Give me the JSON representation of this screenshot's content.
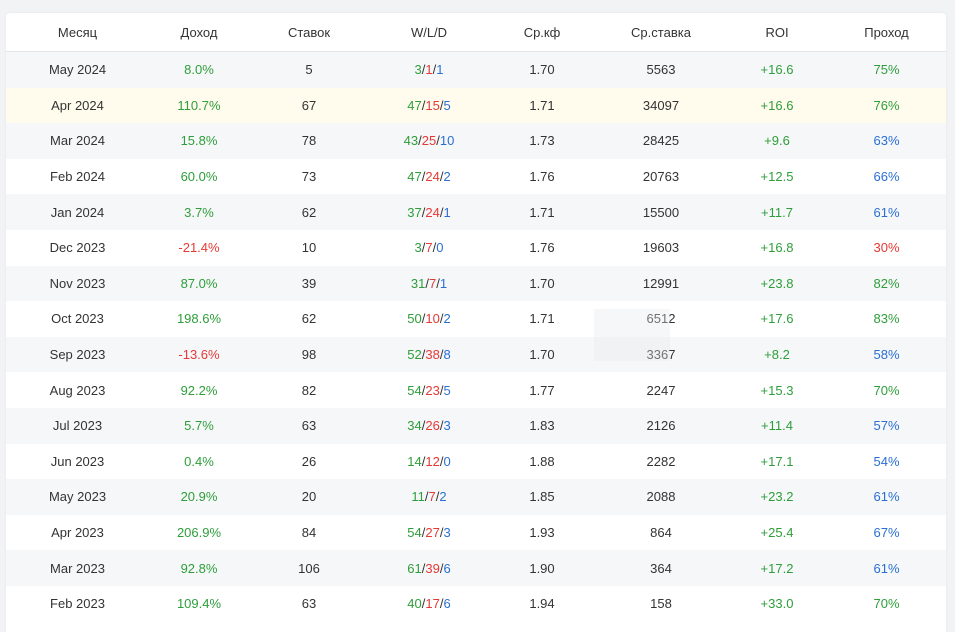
{
  "colors": {
    "positive": "#2e9e3a",
    "negative": "#e53935",
    "draw": "#2a6fd4",
    "highlight_row": "#fffbed",
    "alt_row": "#f6f7f9"
  },
  "table": {
    "headers": [
      "Месяц",
      "Доход",
      "Ставок",
      "W/L/D",
      "Ср.кф",
      "Ср.ставка",
      "ROI",
      "Проход"
    ],
    "rows": [
      {
        "month": "May 2024",
        "income": "8.0%",
        "income_tone": "g",
        "bets": "5",
        "w": "3",
        "l": "1",
        "d": "1",
        "avg_odds": "1.70",
        "avg_stake": "5563",
        "roi": "+16.6",
        "pass": "75%",
        "pass_tone": "g"
      },
      {
        "month": "Apr 2024",
        "income": "110.7%",
        "income_tone": "g",
        "bets": "67",
        "w": "47",
        "l": "15",
        "d": "5",
        "avg_odds": "1.71",
        "avg_stake": "34097",
        "roi": "+16.6",
        "pass": "76%",
        "pass_tone": "g"
      },
      {
        "month": "Mar 2024",
        "income": "15.8%",
        "income_tone": "g",
        "bets": "78",
        "w": "43",
        "l": "25",
        "d": "10",
        "avg_odds": "1.73",
        "avg_stake": "28425",
        "roi": "+9.6",
        "pass": "63%",
        "pass_tone": "b"
      },
      {
        "month": "Feb 2024",
        "income": "60.0%",
        "income_tone": "g",
        "bets": "73",
        "w": "47",
        "l": "24",
        "d": "2",
        "avg_odds": "1.76",
        "avg_stake": "20763",
        "roi": "+12.5",
        "pass": "66%",
        "pass_tone": "b"
      },
      {
        "month": "Jan 2024",
        "income": "3.7%",
        "income_tone": "g",
        "bets": "62",
        "w": "37",
        "l": "24",
        "d": "1",
        "avg_odds": "1.71",
        "avg_stake": "15500",
        "roi": "+11.7",
        "pass": "61%",
        "pass_tone": "b"
      },
      {
        "month": "Dec 2023",
        "income": "-21.4%",
        "income_tone": "r",
        "bets": "10",
        "w": "3",
        "l": "7",
        "d": "0",
        "avg_odds": "1.76",
        "avg_stake": "19603",
        "roi": "+16.8",
        "pass": "30%",
        "pass_tone": "r"
      },
      {
        "month": "Nov 2023",
        "income": "87.0%",
        "income_tone": "g",
        "bets": "39",
        "w": "31",
        "l": "7",
        "d": "1",
        "avg_odds": "1.70",
        "avg_stake": "12991",
        "roi": "+23.8",
        "pass": "82%",
        "pass_tone": "g"
      },
      {
        "month": "Oct 2023",
        "income": "198.6%",
        "income_tone": "g",
        "bets": "62",
        "w": "50",
        "l": "10",
        "d": "2",
        "avg_odds": "1.71",
        "avg_stake": "6512",
        "roi": "+17.6",
        "pass": "83%",
        "pass_tone": "g"
      },
      {
        "month": "Sep 2023",
        "income": "-13.6%",
        "income_tone": "r",
        "bets": "98",
        "w": "52",
        "l": "38",
        "d": "8",
        "avg_odds": "1.70",
        "avg_stake": "3367",
        "roi": "+8.2",
        "pass": "58%",
        "pass_tone": "b"
      },
      {
        "month": "Aug 2023",
        "income": "92.2%",
        "income_tone": "g",
        "bets": "82",
        "w": "54",
        "l": "23",
        "d": "5",
        "avg_odds": "1.77",
        "avg_stake": "2247",
        "roi": "+15.3",
        "pass": "70%",
        "pass_tone": "g"
      },
      {
        "month": "Jul 2023",
        "income": "5.7%",
        "income_tone": "g",
        "bets": "63",
        "w": "34",
        "l": "26",
        "d": "3",
        "avg_odds": "1.83",
        "avg_stake": "2126",
        "roi": "+11.4",
        "pass": "57%",
        "pass_tone": "b"
      },
      {
        "month": "Jun 2023",
        "income": "0.4%",
        "income_tone": "g",
        "bets": "26",
        "w": "14",
        "l": "12",
        "d": "0",
        "avg_odds": "1.88",
        "avg_stake": "2282",
        "roi": "+17.1",
        "pass": "54%",
        "pass_tone": "b"
      },
      {
        "month": "May 2023",
        "income": "20.9%",
        "income_tone": "g",
        "bets": "20",
        "w": "11",
        "l": "7",
        "d": "2",
        "avg_odds": "1.85",
        "avg_stake": "2088",
        "roi": "+23.2",
        "pass": "61%",
        "pass_tone": "b"
      },
      {
        "month": "Apr 2023",
        "income": "206.9%",
        "income_tone": "g",
        "bets": "84",
        "w": "54",
        "l": "27",
        "d": "3",
        "avg_odds": "1.93",
        "avg_stake": "864",
        "roi": "+25.4",
        "pass": "67%",
        "pass_tone": "b"
      },
      {
        "month": "Mar 2023",
        "income": "92.8%",
        "income_tone": "g",
        "bets": "106",
        "w": "61",
        "l": "39",
        "d": "6",
        "avg_odds": "1.90",
        "avg_stake": "364",
        "roi": "+17.2",
        "pass": "61%",
        "pass_tone": "b"
      },
      {
        "month": "Feb 2023",
        "income": "109.4%",
        "income_tone": "g",
        "bets": "63",
        "w": "40",
        "l": "17",
        "d": "6",
        "avg_odds": "1.94",
        "avg_stake": "158",
        "roi": "+33.0",
        "pass": "70%",
        "pass_tone": "g"
      }
    ]
  }
}
